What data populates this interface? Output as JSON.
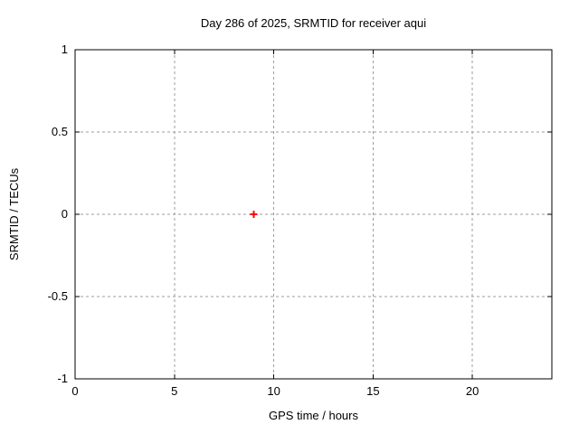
{
  "chart_data": {
    "type": "scatter",
    "title": "Day 286 of 2025, SRMTID for receiver aqui",
    "xlabel": "GPS time / hours",
    "ylabel": "SRMTID / TECUs",
    "xlim": [
      0,
      24
    ],
    "ylim": [
      -1,
      1
    ],
    "xticks": [
      0,
      5,
      10,
      15,
      20
    ],
    "xtick_labels": [
      "0",
      "5",
      "10",
      "15",
      "20"
    ],
    "yticks": [
      -1,
      -0.5,
      0,
      0.5,
      1
    ],
    "ytick_labels": [
      "-1",
      "-0.5",
      "0",
      "0.5",
      "1"
    ],
    "grid": true,
    "legend": "none",
    "series": [
      {
        "name": "SRMTID",
        "marker": "plus",
        "color": "#ff0000",
        "points": [
          {
            "x": 9,
            "y": 0
          }
        ]
      }
    ],
    "colors": {
      "axis": "#000000",
      "grid": "#9e9e9e",
      "background": "#ffffff"
    }
  }
}
